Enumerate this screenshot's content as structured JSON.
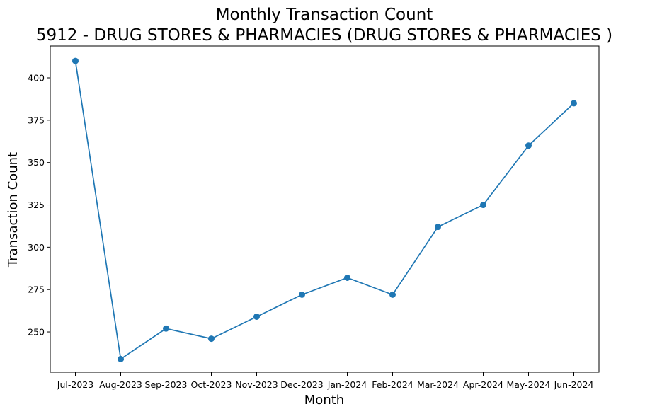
{
  "chart_data": {
    "type": "line",
    "title": "Monthly Transaction Count",
    "subtitle": "5912 - DRUG STORES & PHARMACIES (DRUG STORES & PHARMACIES )",
    "xlabel": "Month",
    "ylabel": "Transaction Count",
    "categories": [
      "Jul-2023",
      "Aug-2023",
      "Sep-2023",
      "Oct-2023",
      "Nov-2023",
      "Dec-2023",
      "Jan-2024",
      "Feb-2024",
      "Mar-2024",
      "Apr-2024",
      "May-2024",
      "Jun-2024"
    ],
    "series": [
      {
        "values": [
          410,
          234,
          252,
          246,
          259,
          272,
          282,
          272,
          312,
          325,
          360,
          385
        ],
        "color": "#1f77b4",
        "marker": "circle"
      }
    ],
    "yticks": [
      250,
      275,
      300,
      325,
      350,
      375,
      400
    ],
    "ylim": [
      226.2,
      418.8
    ],
    "grid": false,
    "legend": false
  }
}
